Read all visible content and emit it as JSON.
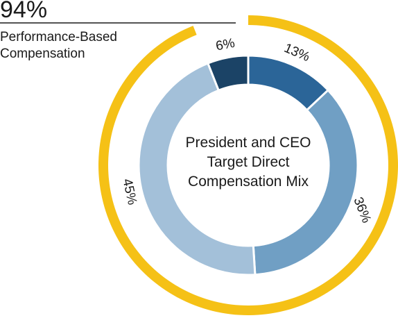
{
  "chart_data": [
    {
      "type": "donut",
      "title": "President and CEO Target Direct Compensation Mix",
      "values": [
        13,
        36,
        45,
        6
      ],
      "value_labels": [
        "13%",
        "36%",
        "45%",
        "6%"
      ],
      "colors": [
        "#2b6598",
        "#709fc4",
        "#a3c0d9",
        "#1b4366"
      ]
    },
    {
      "type": "ring",
      "title": "Performance-Based Compensation",
      "values": [
        94
      ],
      "value_labels": [
        "94%"
      ],
      "color": "#f5c116"
    }
  ]
}
